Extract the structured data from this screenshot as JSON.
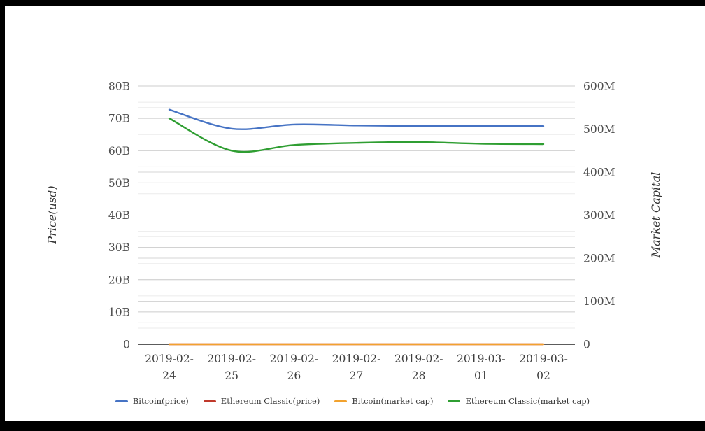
{
  "chart_data": {
    "type": "line",
    "x_categories": [
      "2019-02-24",
      "2019-02-25",
      "2019-02-26",
      "2019-02-27",
      "2019-02-28",
      "2019-03-01",
      "2019-03-02"
    ],
    "series": [
      {
        "name": "Bitcoin(price)",
        "axis": "left",
        "color": "#4673c4",
        "values": [
          72.7,
          66.8,
          68.1,
          67.8,
          67.6,
          67.6,
          67.6
        ]
      },
      {
        "name": "Ethereum Classic(price)",
        "axis": "left",
        "color": "#c0392b",
        "values": [
          0,
          0,
          0,
          0,
          0,
          0,
          0
        ]
      },
      {
        "name": "Bitcoin(market cap)",
        "axis": "right",
        "color": "#f2a22e",
        "values": [
          0,
          0,
          0,
          0,
          0,
          0,
          0
        ]
      },
      {
        "name": "Ethereum Classic(market cap)",
        "axis": "right",
        "color": "#2f9e32",
        "values": [
          525,
          450,
          463,
          468,
          470,
          466,
          465
        ]
      }
    ],
    "left_axis": {
      "title": "Price(usd)",
      "max": 80,
      "major_step": 10,
      "minor_step": 5,
      "ticks": [
        "80B",
        "70B",
        "60B",
        "50B",
        "40B",
        "30B",
        "20B",
        "10B",
        "0"
      ]
    },
    "right_axis": {
      "title": "Market Capital",
      "max": 600,
      "major_step": 100,
      "minor_step": 50,
      "ticks": [
        "600M",
        "500M",
        "400M",
        "300M",
        "200M",
        "100M",
        "0"
      ]
    },
    "grid": "horizontal-only",
    "legend_position": "bottom-center",
    "smooth": true
  },
  "colors": {
    "background": "#ffffff",
    "frame": "#000000",
    "grid_major_left": "#cccccc",
    "grid_major_right": "#d6d6d6",
    "grid_minor": "#ebebeb",
    "axis_line": "#262626",
    "tick_label": "#4d4d4d",
    "x_label": "#3f3f3f",
    "axis_title": "#333333",
    "legend_text": "#383838"
  }
}
